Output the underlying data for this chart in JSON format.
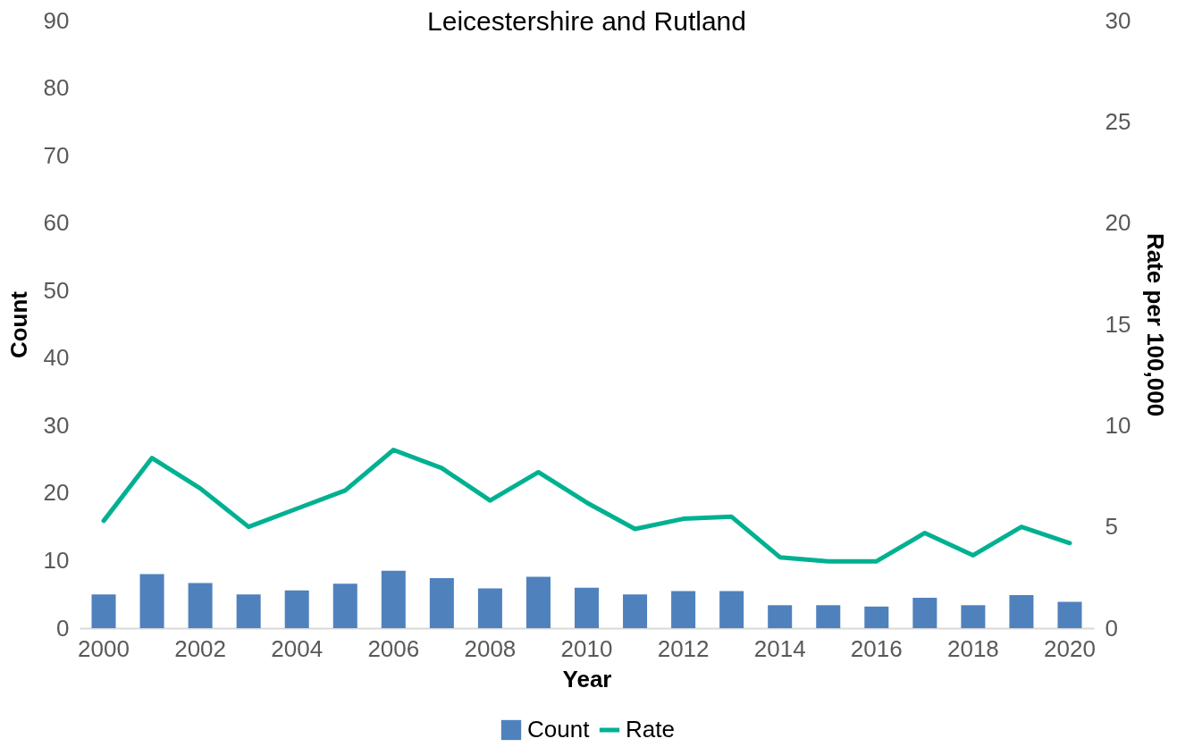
{
  "chart_data": {
    "type": "bar",
    "title": "Leicestershire and Rutland",
    "xlabel": "Year",
    "ylabel": "Count",
    "y2label": "Rate per 100,000",
    "categories": [
      "2000",
      null,
      "2002",
      null,
      "2004",
      null,
      "2006",
      null,
      "2008",
      null,
      "2010",
      null,
      "2012",
      null,
      "2014",
      null,
      "2016",
      null,
      "2018",
      null,
      "2020"
    ],
    "series": [
      {
        "name": "Count",
        "color": "#4f81bd",
        "values": [
          5.0,
          8.0,
          6.7,
          5.0,
          5.6,
          6.6,
          8.5,
          7.4,
          5.9,
          7.6,
          6.0,
          5.0,
          5.5,
          5.5,
          3.4,
          3.4,
          3.2,
          4.5,
          3.4,
          4.9,
          3.9
        ]
      },
      {
        "name": "Rate",
        "type": "line",
        "axis": "y2",
        "color": "#00b191",
        "values": [
          5.3,
          8.4,
          6.9,
          5.0,
          5.9,
          6.8,
          8.8,
          7.9,
          6.3,
          7.7,
          6.2,
          4.9,
          5.4,
          5.5,
          3.5,
          3.3,
          3.3,
          4.7,
          3.6,
          5.0,
          4.2
        ]
      }
    ],
    "ylim": [
      0,
      90
    ],
    "yticks": [
      0,
      10,
      20,
      30,
      40,
      50,
      60,
      70,
      80,
      90
    ],
    "y2lim": [
      0,
      30
    ],
    "y2ticks": [
      0,
      5,
      10,
      15,
      20,
      25,
      30
    ],
    "legend": "bottom"
  }
}
